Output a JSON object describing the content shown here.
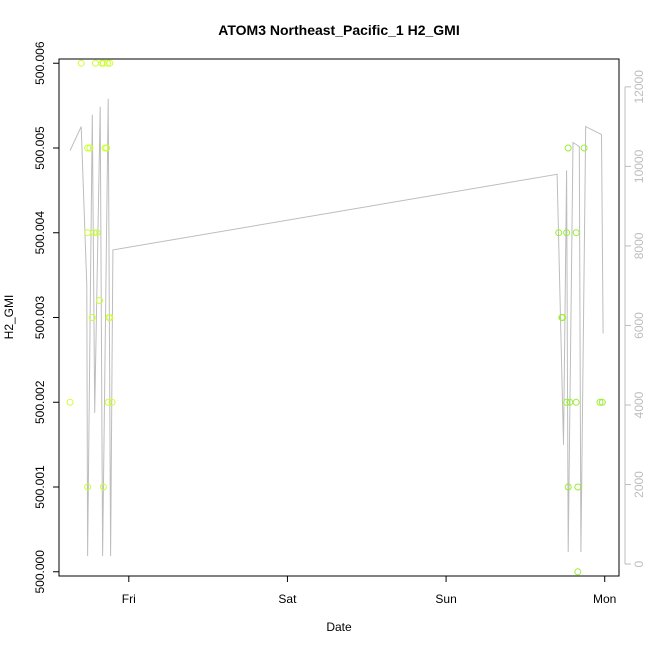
{
  "chart_data": {
    "type": "scatter",
    "title": "ATOM3 Northeast_Pacific_1 H2_GMI",
    "xlabel": "Date",
    "ylabel": "H2_GMI",
    "x_ticks": [
      {
        "label": "Fri",
        "x": 1.0
      },
      {
        "label": "Sat",
        "x": 2.0
      },
      {
        "label": "Sun",
        "x": 3.0
      },
      {
        "label": "Mon",
        "x": 4.0
      }
    ],
    "xlim": [
      0.56,
      4.09
    ],
    "ylim": [
      499.99995,
      500.00605
    ],
    "y_ticks": [
      {
        "label": "500.000",
        "v": 500.0
      },
      {
        "label": "500.001",
        "v": 500.001
      },
      {
        "label": "500.002",
        "v": 500.002
      },
      {
        "label": "500.003",
        "v": 500.003
      },
      {
        "label": "500.004",
        "v": 500.004
      },
      {
        "label": "500.005",
        "v": 500.005
      },
      {
        "label": "500.006",
        "v": 500.006
      }
    ],
    "right_axis": {
      "ylim": [
        -300,
        12700
      ],
      "ticks": [
        0,
        2000,
        4000,
        6000,
        8000,
        10000,
        12000
      ],
      "color": "#bdbdbd"
    },
    "points_color": "#ccff33",
    "points_color_late": "#99ee33",
    "series": [
      {
        "points": [
          [
            0.63,
            500.002
          ],
          [
            0.7,
            500.006
          ],
          [
            0.74,
            500.005
          ],
          [
            0.755,
            500.005
          ],
          [
            0.74,
            500.004
          ],
          [
            0.74,
            500.001
          ],
          [
            0.77,
            500.003
          ],
          [
            0.78,
            500.004
          ],
          [
            0.79,
            500.006
          ],
          [
            0.8,
            500.004
          ],
          [
            0.815,
            500.0032
          ],
          [
            0.83,
            500.006
          ],
          [
            0.84,
            500.006
          ],
          [
            0.85,
            500.005
          ],
          [
            0.86,
            500.005
          ],
          [
            0.84,
            500.001
          ],
          [
            0.865,
            500.006
          ],
          [
            0.88,
            500.006
          ],
          [
            0.87,
            500.002
          ],
          [
            0.88,
            500.003
          ],
          [
            0.875,
            500.003
          ],
          [
            0.895,
            500.002
          ]
        ]
      },
      {
        "points": [
          [
            3.71,
            500.004
          ],
          [
            3.73,
            500.003
          ],
          [
            3.735,
            500.003
          ],
          [
            3.76,
            500.004
          ],
          [
            3.76,
            500.002
          ],
          [
            3.77,
            500.005
          ],
          [
            3.77,
            500.001
          ],
          [
            3.78,
            500.002
          ],
          [
            3.82,
            500.002
          ],
          [
            3.82,
            500.004
          ],
          [
            3.83,
            500.001
          ],
          [
            3.83,
            500.0
          ],
          [
            3.87,
            500.005
          ],
          [
            3.97,
            500.002
          ],
          [
            3.985,
            500.002
          ]
        ]
      }
    ],
    "line_series": {
      "color": "#bdbdbd",
      "points": [
        [
          0.63,
          10400
        ],
        [
          0.7,
          11000
        ],
        [
          0.735,
          7000
        ],
        [
          0.74,
          200
        ],
        [
          0.77,
          11300
        ],
        [
          0.785,
          3800
        ],
        [
          0.82,
          11500
        ],
        [
          0.835,
          200
        ],
        [
          0.87,
          11700
        ],
        [
          0.885,
          200
        ],
        [
          0.9,
          7900
        ],
        [
          3.7,
          9800
        ],
        [
          3.74,
          3000
        ],
        [
          3.76,
          9900
        ],
        [
          3.77,
          300
        ],
        [
          3.8,
          10600
        ],
        [
          3.84,
          10500
        ],
        [
          3.85,
          300
        ],
        [
          3.88,
          11000
        ],
        [
          3.98,
          10800
        ],
        [
          3.99,
          5800
        ]
      ]
    }
  }
}
